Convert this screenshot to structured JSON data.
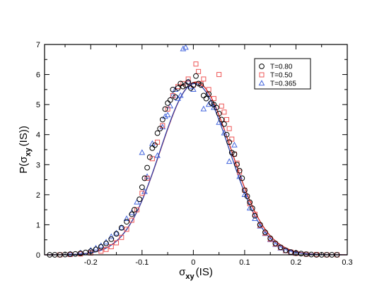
{
  "chart_data": {
    "type": "scatter",
    "title": "",
    "xlabel": {
      "base": "σ",
      "sub": "xy",
      "suffix": "(IS)"
    },
    "ylabel": {
      "prefix": "P(",
      "base": "σ",
      "sub": "xy",
      "suffix": "(IS))"
    },
    "xlim": [
      -0.29,
      0.3
    ],
    "ylim": [
      0,
      7
    ],
    "xticks": [
      -0.2,
      -0.1,
      0,
      0.1,
      0.2,
      0.3
    ],
    "xtick_labels": [
      "-0.2",
      "-0.1",
      "0",
      "0.1",
      "0.2",
      "0.3"
    ],
    "yticks": [
      0,
      1,
      2,
      3,
      4,
      5,
      6,
      7
    ],
    "ytick_labels": [
      "0",
      "1",
      "2",
      "3",
      "4",
      "5",
      "6",
      "7"
    ],
    "grid": false,
    "legend_position": "top-right",
    "fit_curves": [
      {
        "color": "#cc2222",
        "gaussian": {
          "mean": 0.005,
          "sigma": 0.069,
          "amplitude": 5.75
        }
      },
      {
        "color": "#3344aa",
        "gaussian": {
          "mean": 0.003,
          "sigma": 0.068,
          "amplitude": 5.7
        }
      }
    ],
    "series": [
      {
        "name": "T=0.80",
        "marker": "circle",
        "color": "#000000",
        "x": [
          -0.28,
          -0.27,
          -0.26,
          -0.25,
          -0.24,
          -0.23,
          -0.22,
          -0.21,
          -0.2,
          -0.19,
          -0.18,
          -0.17,
          -0.16,
          -0.15,
          -0.14,
          -0.13,
          -0.12,
          -0.115,
          -0.105,
          -0.1,
          -0.095,
          -0.09,
          -0.085,
          -0.08,
          -0.075,
          -0.07,
          -0.065,
          -0.06,
          -0.055,
          -0.05,
          -0.045,
          -0.04,
          -0.035,
          -0.03,
          -0.025,
          -0.02,
          -0.015,
          -0.01,
          -0.005,
          0,
          0.005,
          0.01,
          0.015,
          0.02,
          0.025,
          0.03,
          0.035,
          0.04,
          0.045,
          0.05,
          0.055,
          0.06,
          0.065,
          0.07,
          0.075,
          0.08,
          0.085,
          0.09,
          0.095,
          0.1,
          0.105,
          0.11,
          0.115,
          0.12,
          0.13,
          0.14,
          0.15,
          0.16,
          0.17,
          0.18,
          0.19,
          0.2,
          0.21,
          0.22,
          0.23,
          0.24,
          0.25,
          0.26,
          0.27,
          0.28
        ],
        "y": [
          0.0,
          0.0,
          0.0,
          0.01,
          0.02,
          0.03,
          0.05,
          0.08,
          0.12,
          0.18,
          0.27,
          0.38,
          0.52,
          0.7,
          0.9,
          1.1,
          1.35,
          1.5,
          1.85,
          2.25,
          2.55,
          2.9,
          3.25,
          3.55,
          3.65,
          4.05,
          4.2,
          4.5,
          4.85,
          5.05,
          5.15,
          5.5,
          5.25,
          5.55,
          5.7,
          5.6,
          5.65,
          5.75,
          5.55,
          5.65,
          5.95,
          5.7,
          5.65,
          5.3,
          5.2,
          5.35,
          5.05,
          5.0,
          4.9,
          4.7,
          4.5,
          4.35,
          4.0,
          3.75,
          3.4,
          3.35,
          3.0,
          2.8,
          2.55,
          2.15,
          1.95,
          1.75,
          1.55,
          1.3,
          1.0,
          0.75,
          0.55,
          0.38,
          0.25,
          0.15,
          0.09,
          0.06,
          0.04,
          0.02,
          0.01,
          0.0,
          0.0,
          0.0,
          0.0,
          0.0
        ]
      },
      {
        "name": "T=0.50",
        "marker": "square",
        "color": "#ee5555",
        "x": [
          -0.26,
          -0.24,
          -0.22,
          -0.2,
          -0.18,
          -0.17,
          -0.16,
          -0.15,
          -0.14,
          -0.13,
          -0.12,
          -0.11,
          -0.1,
          -0.09,
          -0.08,
          -0.07,
          -0.06,
          -0.05,
          -0.04,
          -0.03,
          -0.02,
          -0.01,
          0.0,
          0.005,
          0.01,
          0.015,
          0.02,
          0.03,
          0.04,
          0.05,
          0.055,
          0.06,
          0.065,
          0.07,
          0.075,
          0.08,
          0.085,
          0.09,
          0.1,
          0.11,
          0.12,
          0.13,
          0.14,
          0.15,
          0.16,
          0.17,
          0.18,
          0.19,
          0.2,
          0.22,
          0.24,
          0.26,
          0.28
        ],
        "y": [
          0.0,
          0.01,
          0.03,
          0.06,
          0.12,
          0.18,
          0.27,
          0.4,
          0.58,
          0.85,
          1.15,
          1.5,
          2.05,
          2.55,
          3.2,
          3.75,
          4.3,
          4.85,
          5.3,
          5.6,
          5.7,
          5.85,
          5.65,
          6.35,
          6.1,
          5.7,
          5.85,
          5.5,
          5.2,
          6.0,
          4.95,
          4.75,
          4.5,
          4.2,
          3.85,
          3.35,
          3.05,
          2.75,
          2.15,
          1.7,
          1.35,
          0.98,
          0.72,
          0.52,
          0.36,
          0.24,
          0.14,
          0.09,
          0.05,
          0.02,
          0.01,
          0.0,
          0.0
        ]
      },
      {
        "name": "T=0.365",
        "marker": "triangle",
        "color": "#4466dd",
        "x": [
          -0.24,
          -0.22,
          -0.2,
          -0.19,
          -0.18,
          -0.17,
          -0.16,
          -0.15,
          -0.14,
          -0.13,
          -0.12,
          -0.11,
          -0.1,
          -0.095,
          -0.09,
          -0.08,
          -0.07,
          -0.06,
          -0.055,
          -0.05,
          -0.045,
          -0.04,
          -0.035,
          -0.03,
          -0.025,
          -0.02,
          -0.015,
          -0.01,
          -0.005,
          0.0,
          0.02,
          0.03,
          0.04,
          0.05,
          0.06,
          0.07,
          0.08,
          0.09,
          0.1,
          0.11,
          0.12,
          0.13,
          0.14,
          0.15,
          0.16,
          0.17,
          0.18,
          0.19,
          0.2
        ],
        "y": [
          0.02,
          0.06,
          0.15,
          0.22,
          0.3,
          0.42,
          0.6,
          0.72,
          0.9,
          1.2,
          1.4,
          1.75,
          3.4,
          2.1,
          2.6,
          3.7,
          3.3,
          4.25,
          4.6,
          4.65,
          4.95,
          5.3,
          5.5,
          5.2,
          5.3,
          6.85,
          6.9,
          5.75,
          5.6,
          5.5,
          4.85,
          5.0,
          4.9,
          4.4,
          4.05,
          3.1,
          3.65,
          2.6,
          2.0,
          1.55,
          1.2,
          0.95,
          0.7,
          0.5,
          0.34,
          0.22,
          0.13,
          0.08,
          0.05
        ]
      }
    ]
  }
}
